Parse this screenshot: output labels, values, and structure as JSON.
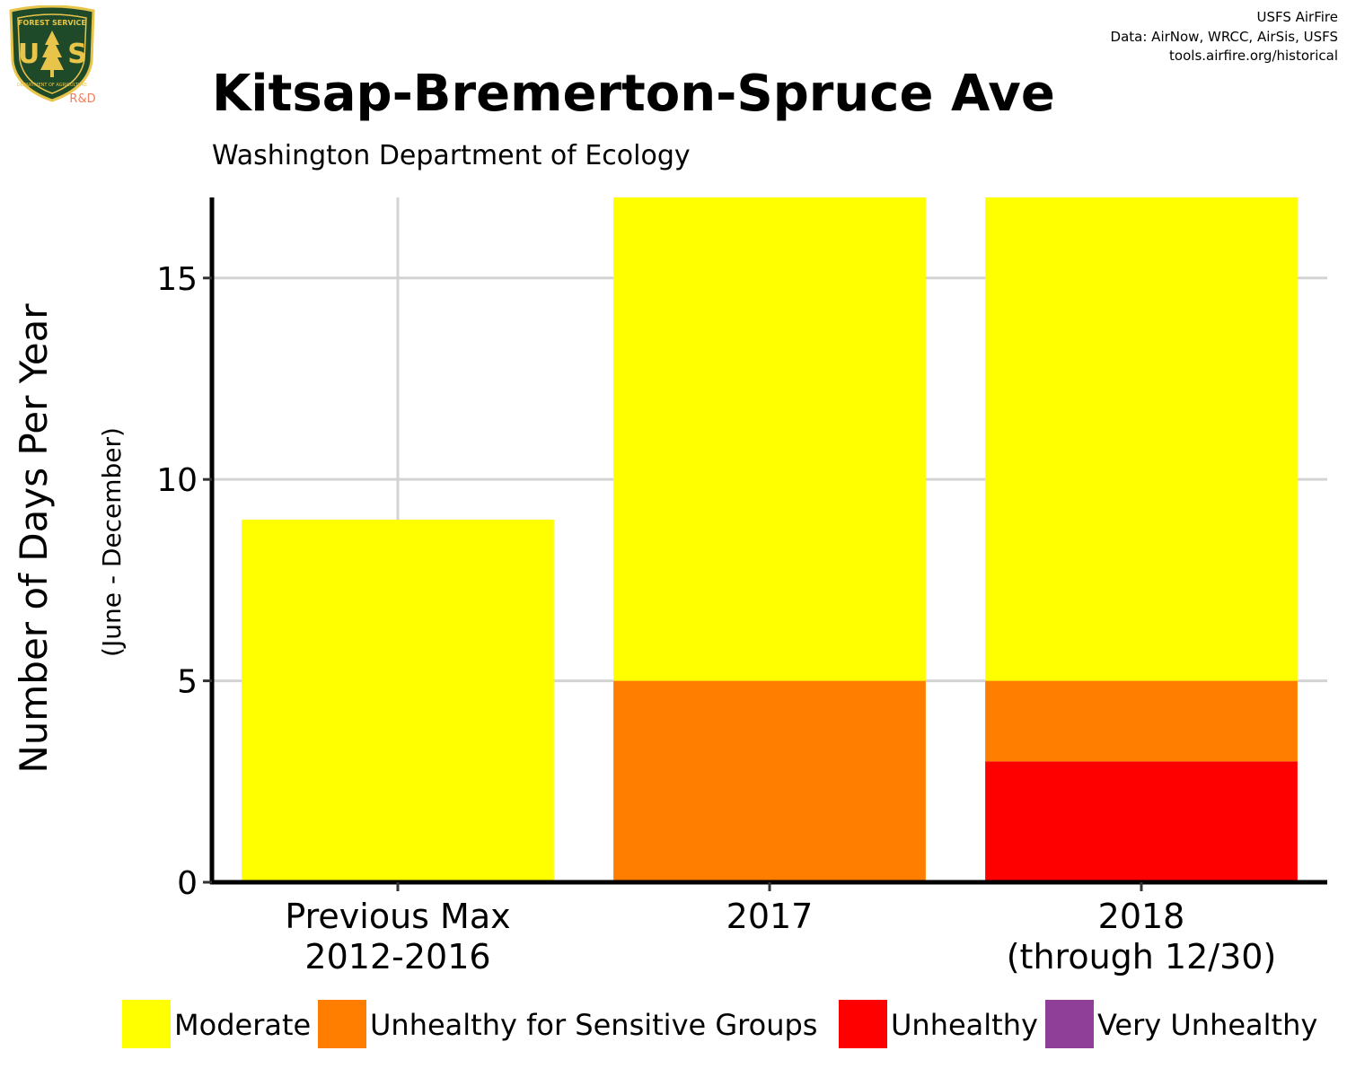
{
  "header": {
    "credit_line1": "USFS AirFire",
    "credit_line2": "Data: AirNow, WRCC, AirSis, USFS",
    "credit_line3": "tools.airfire.org/historical"
  },
  "logo": {
    "top_text": "FOREST SERVICE",
    "letters": "USFS",
    "bottom_text": "DEPARTMENT OF AGRICULTURE",
    "badge": "R&D"
  },
  "colors": {
    "Moderate": "#FFFF00",
    "Unhealthy for Sensitive Groups": "#FF7E00",
    "Unhealthy": "#FF0000",
    "Very Unhealthy": "#8F3F97",
    "grid": "#d3d3d3",
    "axis": "#000000"
  },
  "chart_data": {
    "type": "bar",
    "stacked": true,
    "title": "Kitsap-Bremerton-Spruce Ave",
    "subtitle": "Washington Department of Ecology",
    "ylabel": "Number of Days Per Year",
    "ylabel_sub": "(June - December)",
    "xlabel": "",
    "ylim": [
      0,
      17
    ],
    "yticks": [
      0,
      5,
      10,
      15
    ],
    "grid": true,
    "legend_position": "bottom",
    "categories": [
      [
        "Previous Max",
        "2012-2016"
      ],
      [
        "2017"
      ],
      [
        "2018",
        "(through 12/30)"
      ]
    ],
    "series": [
      {
        "name": "Unhealthy",
        "values": [
          0,
          0,
          3
        ]
      },
      {
        "name": "Unhealthy for Sensitive Groups",
        "values": [
          0,
          5,
          2
        ]
      },
      {
        "name": "Moderate",
        "values": [
          9,
          12,
          12
        ]
      },
      {
        "name": "Very Unhealthy",
        "values": [
          0,
          0,
          0
        ]
      }
    ],
    "legend": [
      "Moderate",
      "Unhealthy for Sensitive Groups",
      "Unhealthy",
      "Very Unhealthy"
    ]
  }
}
